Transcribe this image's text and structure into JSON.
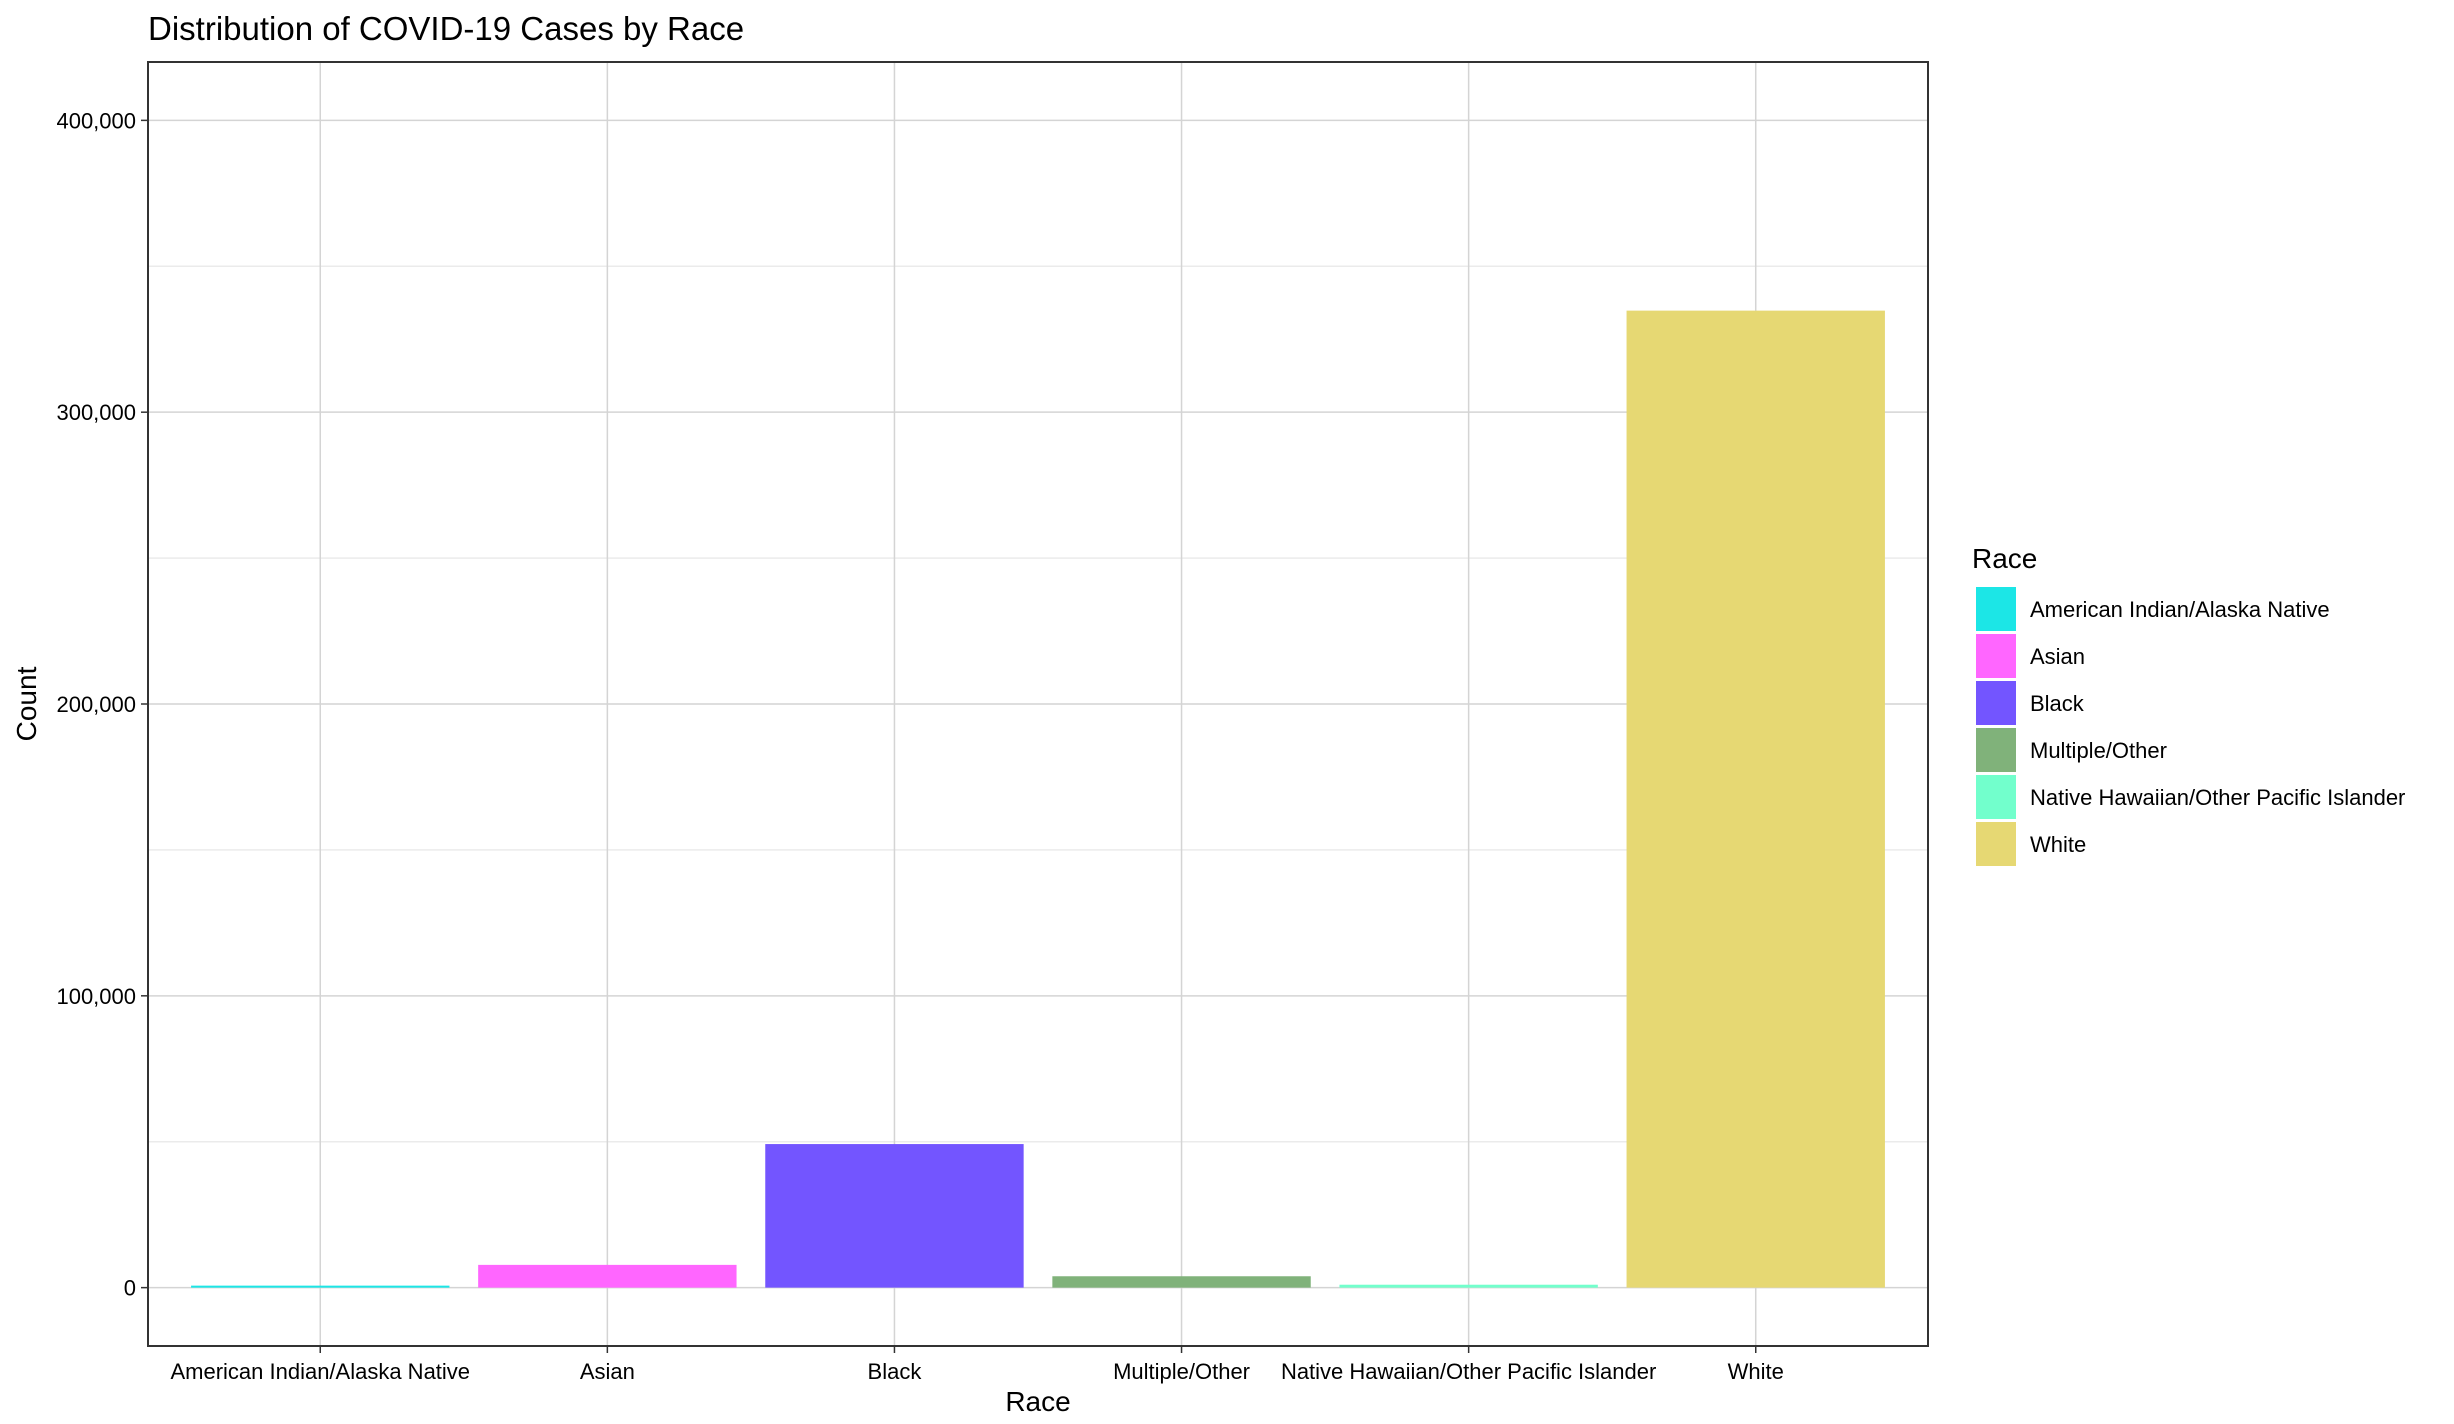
{
  "chart_data": {
    "type": "bar",
    "title": "Distribution of COVID-19 Cases by Race",
    "xlabel": "Race",
    "ylabel": "Count",
    "categories": [
      "American Indian/Alaska Native",
      "Asian",
      "Black",
      "Multiple/Other",
      "Native Hawaiian/Other Pacific Islander",
      "White"
    ],
    "values": [
      300,
      7800,
      49200,
      3900,
      1000,
      334800
    ],
    "colors": [
      "#1CE6E6",
      "#FF66FF",
      "#7355FF",
      "#80B27A",
      "#72FFCC",
      "#E6D873"
    ],
    "ylim": [
      -20000,
      420000
    ],
    "yticks": [
      0,
      100000,
      200000,
      300000,
      400000
    ],
    "ytick_labels": [
      "0",
      "100,000",
      "200,000",
      "300,000",
      "400,000"
    ],
    "grid": true,
    "legend": {
      "title": "Race",
      "position": "right",
      "entries": [
        "American Indian/Alaska Native",
        "Asian",
        "Black",
        "Multiple/Other",
        "Native Hawaiian/Other Pacific Islander",
        "White"
      ]
    }
  }
}
